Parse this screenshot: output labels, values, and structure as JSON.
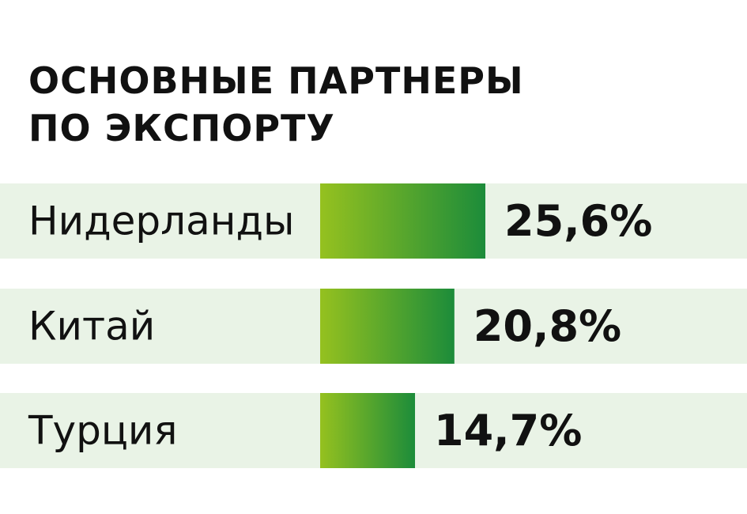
{
  "title_lines": [
    "ОСНОВНЫЕ ПАРТНЕРЫ",
    "ПО ЭКСПОРТУ"
  ],
  "colors": {
    "row_background": "#e9f3e6",
    "bar_gradient_start": "#95c11f",
    "bar_gradient_end": "#1c8c3a",
    "text": "#111111"
  },
  "chart_data": {
    "type": "bar",
    "orientation": "horizontal",
    "title": "ОСНОВНЫЕ ПАРТНЕРЫ ПО ЭКСПОРТУ",
    "categories": [
      "Нидерланды",
      "Китай",
      "Турция"
    ],
    "values": [
      25.6,
      20.8,
      14.7
    ],
    "value_labels": [
      "25,6%",
      "20,8%",
      "14,7%"
    ],
    "unit": "%",
    "grid": false,
    "legend": "none"
  }
}
